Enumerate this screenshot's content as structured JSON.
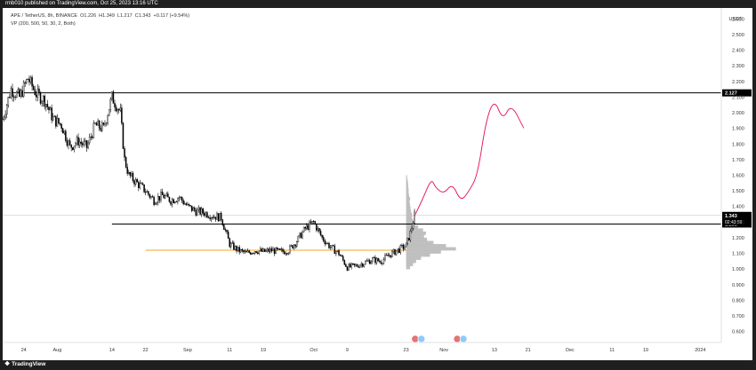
{
  "header": {
    "publish_line": "rmb010 published on TradingView.com, Oct 25, 2023 13:16 UTC"
  },
  "legend": {
    "symbol": "APE / TetherUS, 8h, BINANCE",
    "open": "O1.226",
    "high": "H1.349",
    "low": "L1.217",
    "close": "C1.343",
    "change": "+0.117 (+9.54%)",
    "indicator": "VP (200, 500, 50, 30, 2, Both)"
  },
  "footer": {
    "brand": "TradingView"
  },
  "colors": {
    "up": "#ffffff",
    "down": "#000000",
    "projection": "#e91e63",
    "support_orange": "#f5a623",
    "volume_profile": "#b5b5b5",
    "price_tag": "#000000"
  },
  "chart_data": {
    "type": "candlestick",
    "currency": "USDT",
    "y_ticks": [
      0.6,
      0.7,
      0.8,
      0.9,
      1.0,
      1.1,
      1.2,
      1.3,
      1.4,
      1.5,
      1.6,
      1.7,
      1.8,
      1.9,
      2.0,
      2.1,
      2.2,
      2.3,
      2.4,
      2.5,
      2.6
    ],
    "y_tick_labels": [
      "0.600",
      "0.700",
      "0.800",
      "0.900",
      "1.000",
      "1.100",
      "1.200",
      "1.300",
      "1.400",
      "1.500",
      "1.600",
      "1.700",
      "1.800",
      "1.900",
      "2.000",
      "2.100",
      "2.200",
      "2.300",
      "2.400",
      "2.500",
      "2.600"
    ],
    "ylim": [
      0.53,
      2.67
    ],
    "x_start": "2023-07-19",
    "x_end": "2024-01-06",
    "x_ticks": [
      {
        "date": "2023-07-24",
        "label": "24"
      },
      {
        "date": "2023-08-01",
        "label": "Aug"
      },
      {
        "date": "2023-08-14",
        "label": "14"
      },
      {
        "date": "2023-08-22",
        "label": "22"
      },
      {
        "date": "2023-09-01",
        "label": "Sep"
      },
      {
        "date": "2023-09-11",
        "label": "11"
      },
      {
        "date": "2023-09-19",
        "label": "19"
      },
      {
        "date": "2023-10-01",
        "label": "Oct"
      },
      {
        "date": "2023-10-09",
        "label": "9"
      },
      {
        "date": "2023-10-23",
        "label": "23"
      },
      {
        "date": "2023-11-01",
        "label": "Nov"
      },
      {
        "date": "2023-11-13",
        "label": "13"
      },
      {
        "date": "2023-11-21",
        "label": "21"
      },
      {
        "date": "2023-12-01",
        "label": "Dec"
      },
      {
        "date": "2023-12-11",
        "label": "11"
      },
      {
        "date": "2023-12-19",
        "label": "19"
      },
      {
        "date": "2024-01-01",
        "label": "2024"
      }
    ],
    "price_path": [
      [
        "2023-07-19",
        1.96
      ],
      [
        "2023-07-21",
        2.15
      ],
      [
        "2023-07-23",
        2.1
      ],
      [
        "2023-07-25",
        2.22
      ],
      [
        "2023-07-27",
        2.12
      ],
      [
        "2023-07-29",
        2.08
      ],
      [
        "2023-07-31",
        1.96
      ],
      [
        "2023-08-02",
        1.92
      ],
      [
        "2023-08-04",
        1.78
      ],
      [
        "2023-08-06",
        1.82
      ],
      [
        "2023-08-08",
        1.78
      ],
      [
        "2023-08-10",
        1.92
      ],
      [
        "2023-08-12",
        1.9
      ],
      [
        "2023-08-14",
        2.1
      ],
      [
        "2023-08-16",
        2.0
      ],
      [
        "2023-08-17",
        1.7
      ],
      [
        "2023-08-18",
        1.6
      ],
      [
        "2023-08-20",
        1.55
      ],
      [
        "2023-08-22",
        1.5
      ],
      [
        "2023-08-24",
        1.44
      ],
      [
        "2023-08-26",
        1.47
      ],
      [
        "2023-08-28",
        1.44
      ],
      [
        "2023-08-30",
        1.46
      ],
      [
        "2023-09-01",
        1.4
      ],
      [
        "2023-09-03",
        1.37
      ],
      [
        "2023-09-05",
        1.36
      ],
      [
        "2023-09-07",
        1.34
      ],
      [
        "2023-09-09",
        1.33
      ],
      [
        "2023-09-11",
        1.16
      ],
      [
        "2023-09-13",
        1.12
      ],
      [
        "2023-09-15",
        1.1
      ],
      [
        "2023-09-17",
        1.12
      ],
      [
        "2023-09-19",
        1.11
      ],
      [
        "2023-09-21",
        1.12
      ],
      [
        "2023-09-23",
        1.11
      ],
      [
        "2023-09-25",
        1.12
      ],
      [
        "2023-09-27",
        1.18
      ],
      [
        "2023-09-29",
        1.26
      ],
      [
        "2023-10-01",
        1.3
      ],
      [
        "2023-10-03",
        1.2
      ],
      [
        "2023-10-05",
        1.14
      ],
      [
        "2023-10-07",
        1.1
      ],
      [
        "2023-10-09",
        1.01
      ],
      [
        "2023-10-11",
        1.02
      ],
      [
        "2023-10-13",
        1.04
      ],
      [
        "2023-10-15",
        1.06
      ],
      [
        "2023-10-17",
        1.05
      ],
      [
        "2023-10-19",
        1.09
      ],
      [
        "2023-10-21",
        1.12
      ],
      [
        "2023-10-23",
        1.15
      ],
      [
        "2023-10-24",
        1.23
      ],
      [
        "2023-10-25",
        1.343
      ]
    ],
    "projection_path": [
      [
        "2023-10-25",
        1.34
      ],
      [
        "2023-10-27",
        1.45
      ],
      [
        "2023-10-29",
        1.58
      ],
      [
        "2023-10-30",
        1.52
      ],
      [
        "2023-11-01",
        1.48
      ],
      [
        "2023-11-03",
        1.55
      ],
      [
        "2023-11-05",
        1.43
      ],
      [
        "2023-11-07",
        1.5
      ],
      [
        "2023-11-09",
        1.6
      ],
      [
        "2023-11-11",
        1.95
      ],
      [
        "2023-11-13",
        2.09
      ],
      [
        "2023-11-15",
        1.95
      ],
      [
        "2023-11-17",
        2.06
      ],
      [
        "2023-11-20",
        1.9
      ]
    ],
    "horizontal_lines": [
      {
        "name": "resistance",
        "value": 2.127,
        "label": "2.127",
        "from": "2023-07-19"
      },
      {
        "name": "breakout",
        "value": 1.288,
        "label": "1.288",
        "from": "2023-08-14"
      },
      {
        "name": "support",
        "value": 1.12,
        "label": "",
        "from": "2023-08-22",
        "to": "2023-10-23"
      },
      {
        "name": "current",
        "value": 1.343,
        "label": "1.343",
        "sublabel": "02:43:50",
        "from": "2023-07-19"
      }
    ],
    "volume_profile": {
      "anchor": "2023-10-23",
      "levels": [
        [
          1.0,
          8
        ],
        [
          1.02,
          14
        ],
        [
          1.04,
          20
        ],
        [
          1.06,
          30
        ],
        [
          1.08,
          48
        ],
        [
          1.1,
          70
        ],
        [
          1.12,
          100
        ],
        [
          1.14,
          80
        ],
        [
          1.16,
          55
        ],
        [
          1.18,
          42
        ],
        [
          1.2,
          36
        ],
        [
          1.22,
          40
        ],
        [
          1.24,
          34
        ],
        [
          1.26,
          24
        ],
        [
          1.28,
          18
        ],
        [
          1.3,
          14
        ],
        [
          1.32,
          12
        ],
        [
          1.34,
          12
        ],
        [
          1.36,
          10
        ],
        [
          1.38,
          9
        ],
        [
          1.4,
          8
        ],
        [
          1.42,
          7
        ],
        [
          1.44,
          8
        ],
        [
          1.46,
          6
        ],
        [
          1.48,
          5
        ],
        [
          1.5,
          5
        ],
        [
          1.52,
          4
        ],
        [
          1.54,
          4
        ],
        [
          1.56,
          3
        ],
        [
          1.58,
          2
        ]
      ]
    }
  }
}
